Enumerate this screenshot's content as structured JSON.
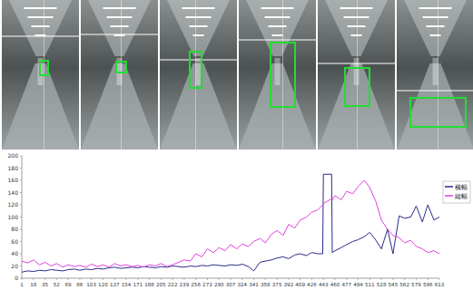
{
  "chart_data": {
    "type": "line",
    "x": [
      1,
      10,
      18,
      27,
      35,
      44,
      52,
      61,
      69,
      78,
      86,
      95,
      103,
      112,
      120,
      129,
      137,
      146,
      154,
      163,
      171,
      180,
      188,
      197,
      205,
      214,
      222,
      231,
      239,
      248,
      256,
      265,
      273,
      282,
      290,
      299,
      307,
      316,
      324,
      333,
      341,
      350,
      358,
      367,
      375,
      384,
      392,
      401,
      409,
      418,
      426,
      435,
      442,
      443,
      455,
      456,
      460,
      469,
      477,
      486,
      494,
      503,
      511,
      520,
      528,
      537,
      545,
      554,
      562,
      571,
      579,
      588,
      596,
      605,
      613
    ],
    "series": [
      {
        "name": "横幅",
        "color": "#2a2a8c",
        "values": [
          10,
          12,
          11,
          13,
          12,
          14,
          13,
          12,
          14,
          15,
          13,
          15,
          14,
          16,
          15,
          17,
          18,
          16,
          17,
          18,
          17,
          19,
          18,
          17,
          19,
          18,
          20,
          19,
          18,
          20,
          19,
          21,
          20,
          22,
          21,
          20,
          22,
          21,
          23,
          19,
          12,
          26,
          28,
          30,
          33,
          35,
          32,
          38,
          40,
          37,
          42,
          40,
          40,
          170,
          170,
          42,
          45,
          50,
          55,
          60,
          63,
          68,
          75,
          62,
          48,
          80,
          40,
          102,
          98,
          100,
          118,
          92,
          120,
          95,
          100
        ]
      },
      {
        "name": "縦幅",
        "color": "#e040e0",
        "values": [
          28,
          25,
          30,
          22,
          26,
          20,
          24,
          18,
          22,
          19,
          21,
          18,
          23,
          19,
          22,
          18,
          24,
          20,
          22,
          19,
          21,
          18,
          22,
          20,
          24,
          19,
          22,
          26,
          30,
          28,
          40,
          35,
          48,
          42,
          50,
          45,
          55,
          48,
          56,
          52,
          60,
          65,
          58,
          72,
          78,
          70,
          88,
          82,
          95,
          100,
          108,
          112,
          120,
          122,
          130,
          128,
          135,
          128,
          142,
          138,
          150,
          160,
          148,
          125,
          95,
          80,
          70,
          66,
          58,
          62,
          52,
          48,
          42,
          45,
          40
        ]
      }
    ],
    "xlim": [
      1,
      613
    ],
    "xticks": [
      1,
      18,
      35,
      52,
      69,
      86,
      103,
      120,
      137,
      154,
      171,
      188,
      205,
      222,
      239,
      256,
      273,
      290,
      307,
      324,
      341,
      358,
      375,
      392,
      409,
      426,
      443,
      460,
      477,
      494,
      511,
      528,
      545,
      562,
      579,
      596,
      613
    ],
    "ylim": [
      0,
      200
    ],
    "yticks": [
      0,
      20,
      40,
      60,
      80,
      100,
      120,
      140,
      160,
      180,
      200
    ],
    "grid": false,
    "legend": "right"
  }
}
